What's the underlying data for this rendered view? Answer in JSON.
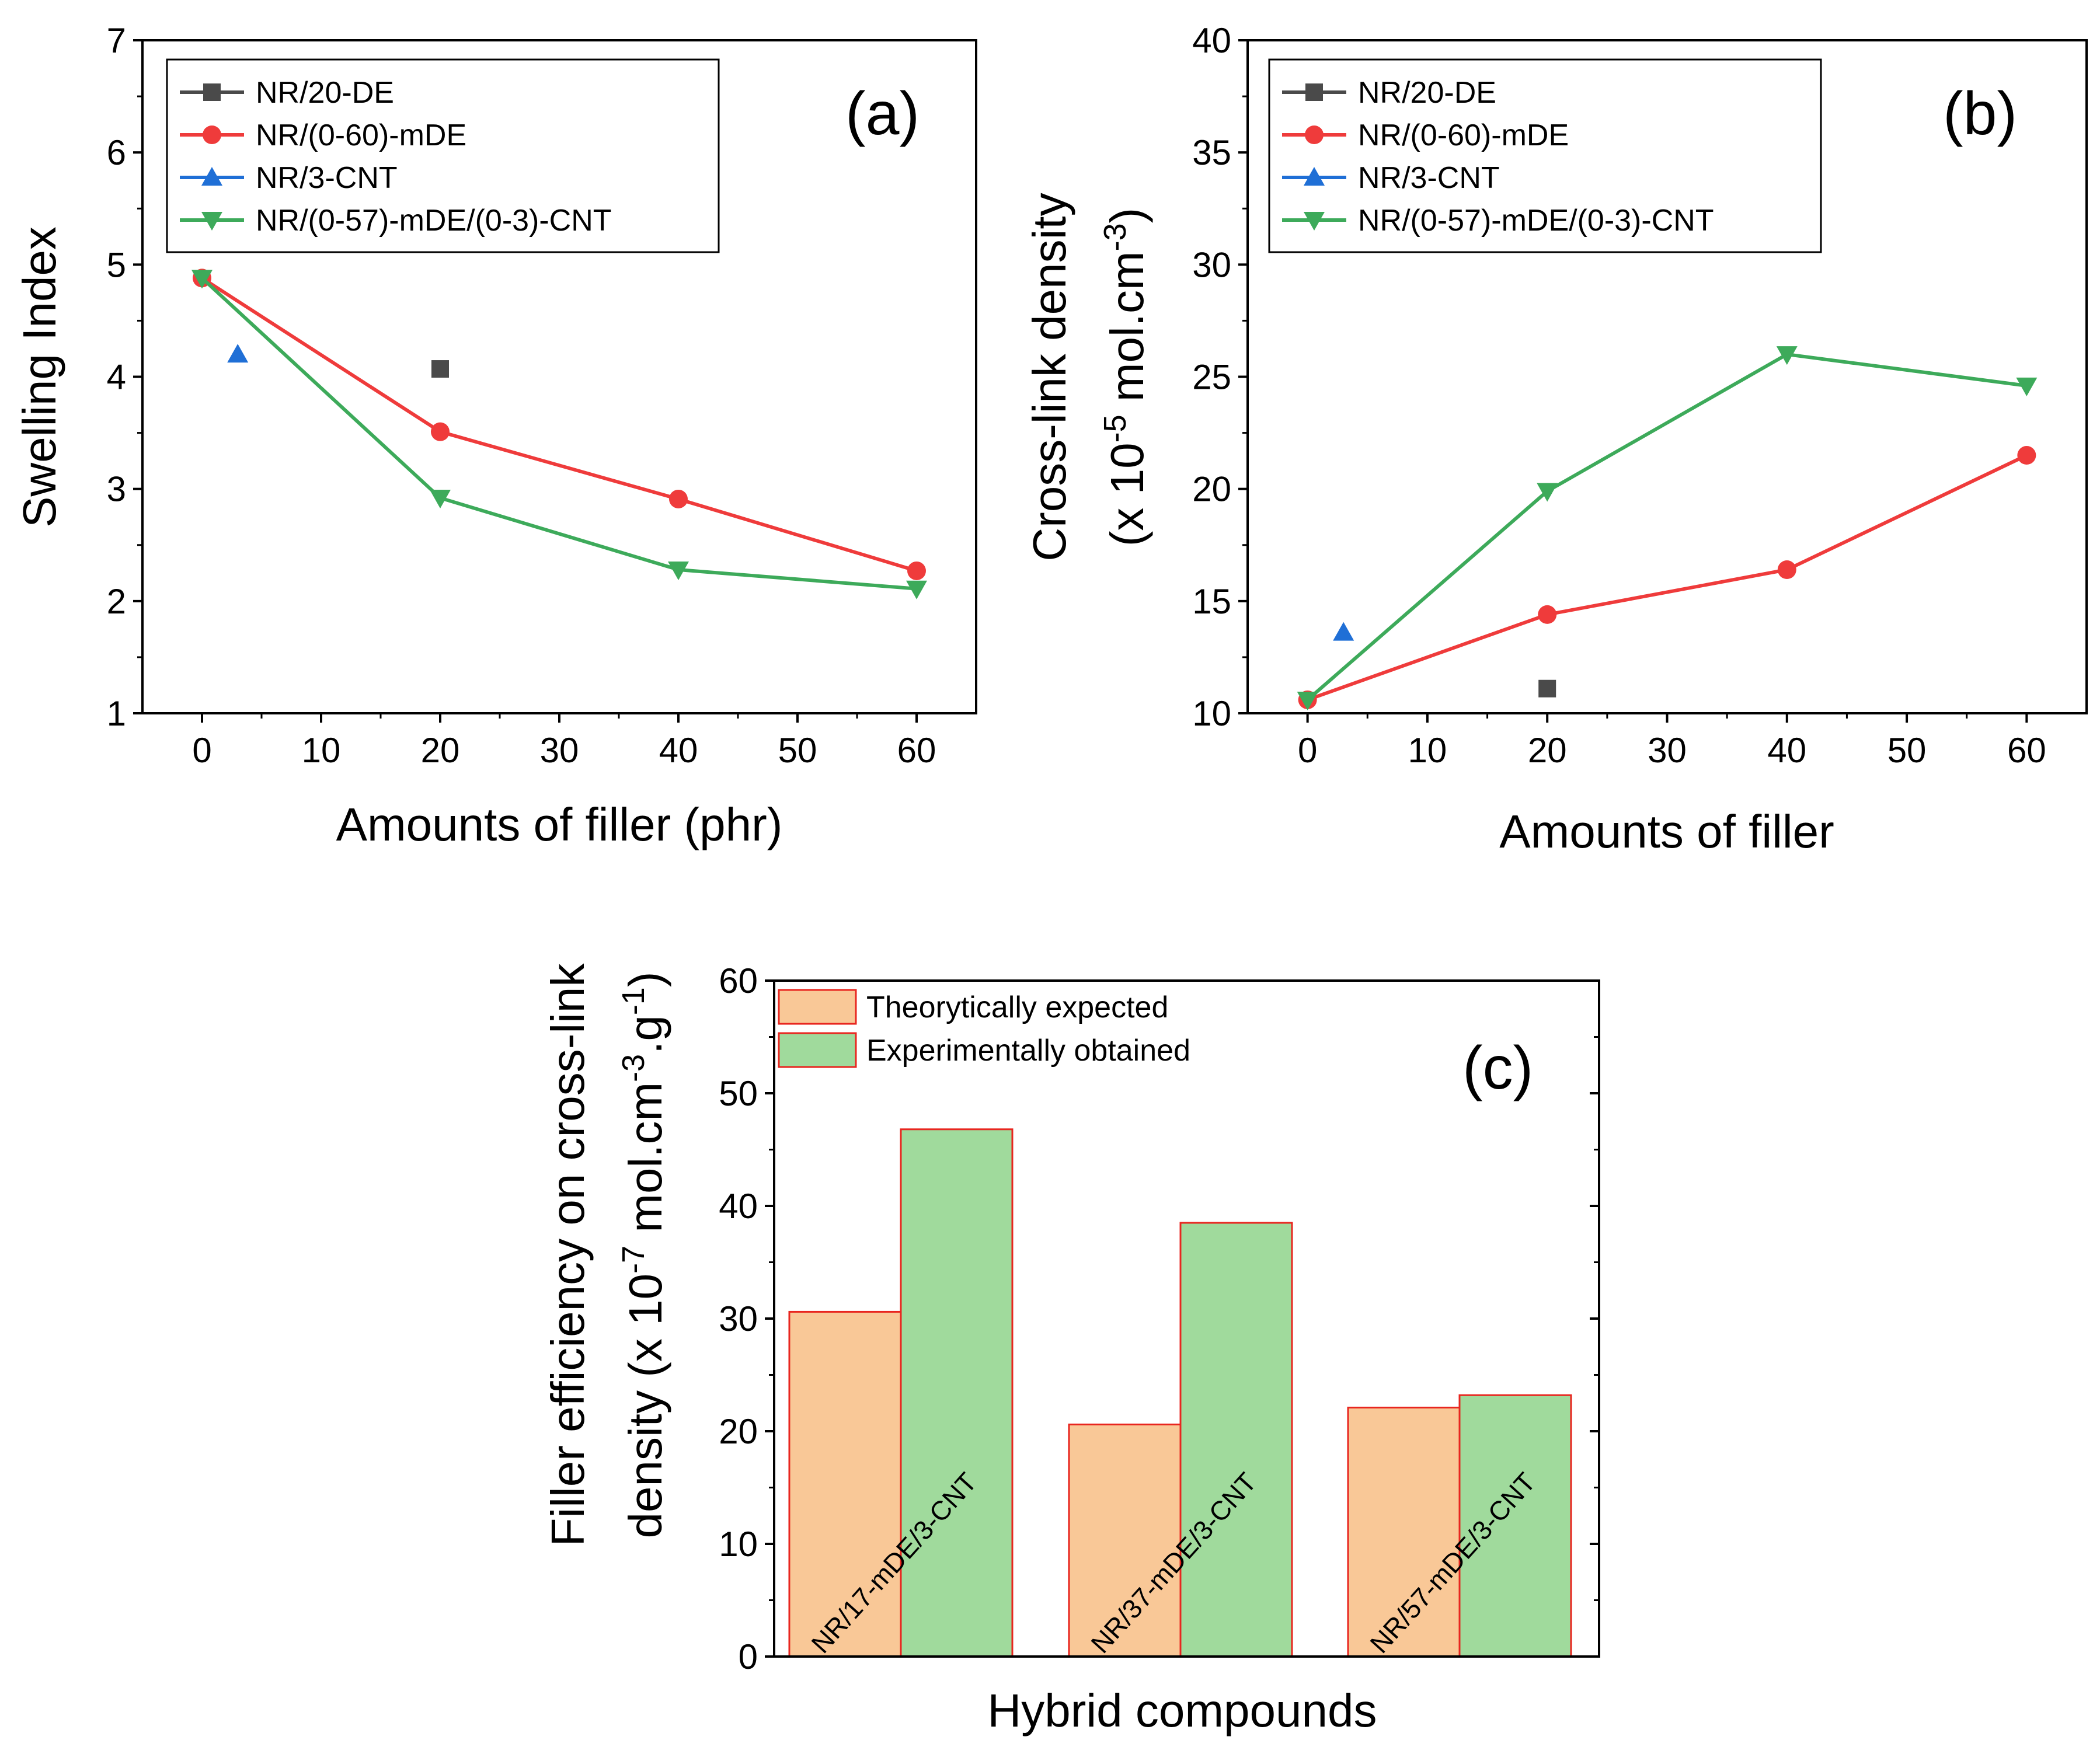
{
  "chart_data": [
    {
      "panel": "a",
      "type": "line",
      "tag": "(a)",
      "xlabel": "Amounts of filler (phr)",
      "ylabel": "Swelling Index",
      "xlim": [
        -5,
        65
      ],
      "ylim": [
        1,
        7
      ],
      "xticks": [
        "0",
        "10",
        "20",
        "30",
        "40",
        "50",
        "60"
      ],
      "yticks": [
        "1",
        "2",
        "3",
        "4",
        "5",
        "6",
        "7"
      ],
      "legend_position": "top-left",
      "series": [
        {
          "name": "NR/20-DE",
          "color": "#4a4a4a",
          "marker": "square",
          "x": [
            20
          ],
          "y": [
            4.07
          ]
        },
        {
          "name": "NR/(0-60)-mDE",
          "color": "#ef3b3b",
          "marker": "circle",
          "x": [
            0,
            20,
            40,
            60
          ],
          "y": [
            4.88,
            3.51,
            2.91,
            2.27
          ]
        },
        {
          "name": "NR/3-CNT",
          "color": "#1f6fd6",
          "marker": "triangle-up",
          "x": [
            3
          ],
          "y": [
            4.2
          ]
        },
        {
          "name": "NR/(0-57)-mDE/(0-3)-CNT",
          "color": "#3daa5a",
          "marker": "triangle-down",
          "x": [
            0,
            20,
            40,
            60
          ],
          "y": [
            4.88,
            2.92,
            2.28,
            2.11
          ]
        }
      ]
    },
    {
      "panel": "b",
      "type": "line",
      "tag": "(b)",
      "xlabel": "Amounts of filler",
      "ylabel_line1": "Cross-link density",
      "ylabel_line2_prefix": "(x 10",
      "ylabel_line2_sup1": "-5",
      "ylabel_line2_mid": " mol.cm",
      "ylabel_line2_sup2": "-3",
      "ylabel_line2_suffix": ")",
      "xlim": [
        -5,
        65
      ],
      "ylim": [
        10,
        40
      ],
      "xticks": [
        "0",
        "10",
        "20",
        "30",
        "40",
        "50",
        "60"
      ],
      "yticks": [
        "10",
        "15",
        "20",
        "25",
        "30",
        "35",
        "40"
      ],
      "legend_position": "top-left",
      "series": [
        {
          "name": "NR/20-DE",
          "color": "#4a4a4a",
          "marker": "square",
          "x": [
            20
          ],
          "y": [
            11.1
          ]
        },
        {
          "name": "NR/(0-60)-mDE",
          "color": "#ef3b3b",
          "marker": "circle",
          "x": [
            0,
            20,
            40,
            60
          ],
          "y": [
            10.6,
            14.4,
            16.4,
            21.5
          ]
        },
        {
          "name": "NR/3-CNT",
          "color": "#1f6fd6",
          "marker": "triangle-up",
          "x": [
            3
          ],
          "y": [
            13.6
          ]
        },
        {
          "name": "NR/(0-57)-mDE/(0-3)-CNT",
          "color": "#3daa5a",
          "marker": "triangle-down",
          "x": [
            0,
            20,
            40,
            60
          ],
          "y": [
            10.6,
            19.9,
            26.0,
            24.6
          ]
        }
      ]
    },
    {
      "panel": "c",
      "type": "bar",
      "tag": "(c)",
      "xlabel": "Hybrid compounds",
      "ylabel_line1": "Filler efficiency on cross-link",
      "ylabel_line2_prefix": "density (x 10",
      "ylabel_line2_sup1": "-7",
      "ylabel_line2_mid": " mol.cm",
      "ylabel_line2_sup2": "-3",
      "ylabel_line2_mid2": ".g",
      "ylabel_line2_sup3": "-1",
      "ylabel_line2_suffix": ")",
      "ylim": [
        0,
        60
      ],
      "yticks": [
        "0",
        "10",
        "20",
        "30",
        "40",
        "50",
        "60"
      ],
      "legend_position": "top-left",
      "categories": [
        "NR/17-mDE/3-CNT",
        "NR/37-mDE/3-CNT",
        "NR/57-mDE/3-CNT"
      ],
      "series": [
        {
          "name": "Theorytically expected",
          "color": "#f9c897",
          "edge": "#e8261f",
          "values": [
            30.6,
            20.6,
            22.1
          ]
        },
        {
          "name": "Experimentally obtained",
          "color": "#a0da9c",
          "edge": "#e8261f",
          "values": [
            46.8,
            38.5,
            23.2
          ]
        }
      ]
    }
  ]
}
